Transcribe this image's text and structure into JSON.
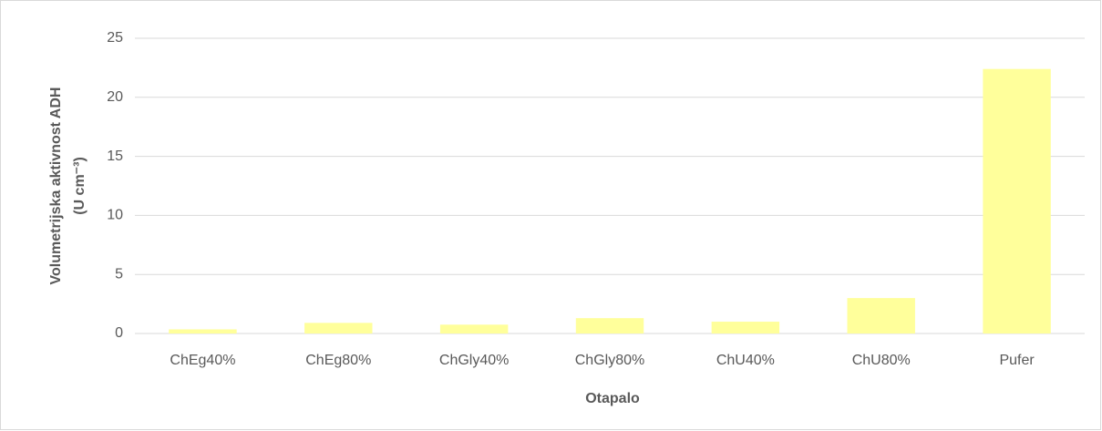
{
  "chart_data": {
    "type": "bar",
    "categories": [
      "ChEg40%",
      "ChEg80%",
      "ChGly40%",
      "ChGly80%",
      "ChU40%",
      "ChU80%",
      "Pufer"
    ],
    "values": [
      0.35,
      0.9,
      0.75,
      1.3,
      1.0,
      3.0,
      22.4
    ],
    "color": "#ffff9b",
    "x_label": "Otapalo",
    "y_label": [
      "Volumetrijska aktivnost ADH",
      "(U cm⁻³)"
    ],
    "ylim": [
      0,
      25
    ],
    "yticks": [
      0,
      5,
      10,
      15,
      20,
      25
    ],
    "grid": true
  }
}
